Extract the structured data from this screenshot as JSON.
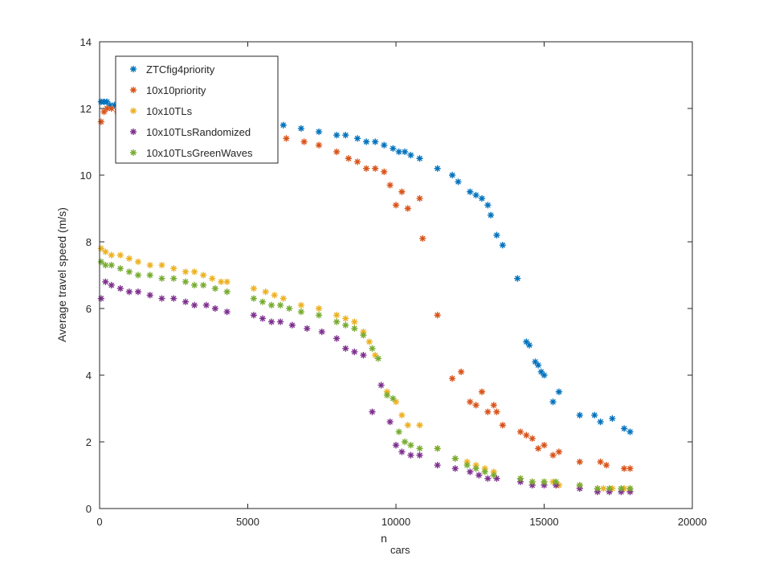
{
  "chart_data": {
    "type": "scatter",
    "title": "",
    "xlabel_main": "n",
    "xlabel_sub": "cars",
    "ylabel": "Average travel speed (m/s)",
    "xlim": [
      0,
      20000
    ],
    "ylim": [
      0,
      14
    ],
    "xticks": [
      0,
      5000,
      10000,
      15000,
      20000
    ],
    "yticks": [
      0,
      2,
      4,
      6,
      8,
      10,
      12,
      14
    ],
    "grid": false,
    "legend_position": "top-left",
    "series": [
      {
        "name": "ZTCfig4priority",
        "color": "#0072BD",
        "x": [
          50,
          150,
          250,
          350,
          500,
          700,
          5800,
          6200,
          6800,
          7400,
          8000,
          8300,
          8700,
          9000,
          9300,
          9600,
          9900,
          10100,
          10300,
          10500,
          10800,
          11400,
          11900,
          12100,
          12500,
          12700,
          12900,
          13100,
          13200,
          13400,
          13600,
          14100,
          14400,
          14500,
          14700,
          14800,
          14900,
          15000,
          15300,
          15500,
          16200,
          16700,
          16900,
          17300,
          17700,
          17900
        ],
        "y": [
          12.2,
          12.2,
          12.2,
          12.1,
          12.1,
          12.1,
          11.5,
          11.5,
          11.4,
          11.3,
          11.2,
          11.2,
          11.1,
          11.0,
          11.0,
          10.9,
          10.8,
          10.7,
          10.7,
          10.6,
          10.5,
          10.2,
          10.0,
          9.8,
          9.5,
          9.4,
          9.3,
          9.1,
          8.8,
          8.2,
          7.9,
          6.9,
          5.0,
          4.9,
          4.4,
          4.3,
          4.1,
          4.0,
          3.2,
          3.5,
          2.8,
          2.8,
          2.6,
          2.7,
          2.4,
          2.3
        ]
      },
      {
        "name": "10x10priority",
        "color": "#D95319",
        "x": [
          50,
          150,
          250,
          400,
          600,
          5800,
          6300,
          6900,
          7400,
          8000,
          8400,
          8700,
          9000,
          9300,
          9600,
          9800,
          10000,
          10200,
          10400,
          10800,
          10900,
          11400,
          11900,
          12200,
          12500,
          12700,
          12900,
          13100,
          13300,
          13400,
          13600,
          14200,
          14400,
          14600,
          14800,
          15000,
          15300,
          15500,
          16200,
          16900,
          17100,
          17700,
          17900
        ],
        "y": [
          11.6,
          11.9,
          12.0,
          12.0,
          11.9,
          11.3,
          11.1,
          11.0,
          10.9,
          10.7,
          10.5,
          10.4,
          10.2,
          10.2,
          10.1,
          9.7,
          9.1,
          9.5,
          9.0,
          9.3,
          8.1,
          5.8,
          3.9,
          4.1,
          3.2,
          3.1,
          3.5,
          2.9,
          3.1,
          2.9,
          2.5,
          2.3,
          2.2,
          2.1,
          1.8,
          1.9,
          1.6,
          1.7,
          1.4,
          1.4,
          1.3,
          1.2,
          1.2
        ]
      },
      {
        "name": "10x10TLs",
        "color": "#EDB120",
        "x": [
          50,
          200,
          400,
          700,
          1000,
          1300,
          1700,
          2100,
          2500,
          2900,
          3200,
          3500,
          3800,
          4100,
          4300,
          5200,
          5600,
          5900,
          6200,
          6800,
          7400,
          8000,
          8300,
          8600,
          8900,
          9100,
          9300,
          9700,
          10000,
          10200,
          10400,
          10800,
          11400,
          12000,
          12400,
          12700,
          13000,
          13300,
          14200,
          14600,
          15000,
          15300,
          15500,
          16200,
          16800,
          17000,
          17300,
          17700,
          17900
        ],
        "y": [
          7.8,
          7.7,
          7.6,
          7.6,
          7.5,
          7.4,
          7.3,
          7.3,
          7.2,
          7.1,
          7.1,
          7.0,
          6.9,
          6.8,
          6.8,
          6.6,
          6.5,
          6.4,
          6.3,
          6.1,
          6.0,
          5.8,
          5.7,
          5.6,
          5.3,
          5.0,
          4.6,
          3.5,
          3.2,
          2.8,
          2.5,
          2.5,
          1.8,
          1.5,
          1.4,
          1.3,
          1.2,
          1.1,
          0.9,
          0.8,
          0.8,
          0.8,
          0.7,
          0.7,
          0.6,
          0.6,
          0.6,
          0.6,
          0.6
        ]
      },
      {
        "name": "10x10TLsRandomized",
        "color": "#7E2F8E",
        "x": [
          50,
          200,
          400,
          700,
          1000,
          1300,
          1700,
          2100,
          2500,
          2900,
          3200,
          3600,
          3900,
          4300,
          5200,
          5500,
          5800,
          6100,
          6500,
          7000,
          7500,
          8000,
          8300,
          8600,
          8900,
          9200,
          9500,
          9800,
          10000,
          10200,
          10500,
          10800,
          11400,
          12000,
          12500,
          12800,
          13100,
          13400,
          14200,
          14600,
          15000,
          15400,
          16200,
          16800,
          17200,
          17600,
          17900
        ],
        "y": [
          6.3,
          6.8,
          6.7,
          6.6,
          6.5,
          6.5,
          6.4,
          6.3,
          6.3,
          6.2,
          6.1,
          6.1,
          6.0,
          5.9,
          5.8,
          5.7,
          5.6,
          5.6,
          5.5,
          5.4,
          5.3,
          5.1,
          4.8,
          4.7,
          4.6,
          2.9,
          3.7,
          2.6,
          1.9,
          1.7,
          1.6,
          1.6,
          1.3,
          1.2,
          1.1,
          1.0,
          0.9,
          0.9,
          0.8,
          0.7,
          0.7,
          0.7,
          0.6,
          0.5,
          0.5,
          0.5,
          0.5
        ]
      },
      {
        "name": "10x10TLsGreenWaves",
        "color": "#77AC30",
        "x": [
          50,
          200,
          400,
          700,
          1000,
          1300,
          1700,
          2100,
          2500,
          2900,
          3200,
          3500,
          3900,
          4300,
          5200,
          5500,
          5800,
          6100,
          6400,
          6800,
          7400,
          8000,
          8300,
          8600,
          8900,
          9200,
          9400,
          9700,
          9900,
          10100,
          10300,
          10500,
          10800,
          11400,
          12000,
          12400,
          12700,
          13000,
          13300,
          14200,
          14600,
          15000,
          15400,
          16200,
          16800,
          17200,
          17600,
          17900
        ],
        "y": [
          7.4,
          7.3,
          7.3,
          7.2,
          7.1,
          7.0,
          7.0,
          6.9,
          6.9,
          6.8,
          6.7,
          6.7,
          6.6,
          6.5,
          6.3,
          6.2,
          6.1,
          6.1,
          6.0,
          5.9,
          5.8,
          5.6,
          5.5,
          5.4,
          5.2,
          4.8,
          4.5,
          3.4,
          3.3,
          2.3,
          2.0,
          1.9,
          1.8,
          1.8,
          1.5,
          1.3,
          1.2,
          1.1,
          1.0,
          0.9,
          0.8,
          0.8,
          0.8,
          0.7,
          0.6,
          0.6,
          0.6,
          0.6
        ]
      }
    ]
  }
}
